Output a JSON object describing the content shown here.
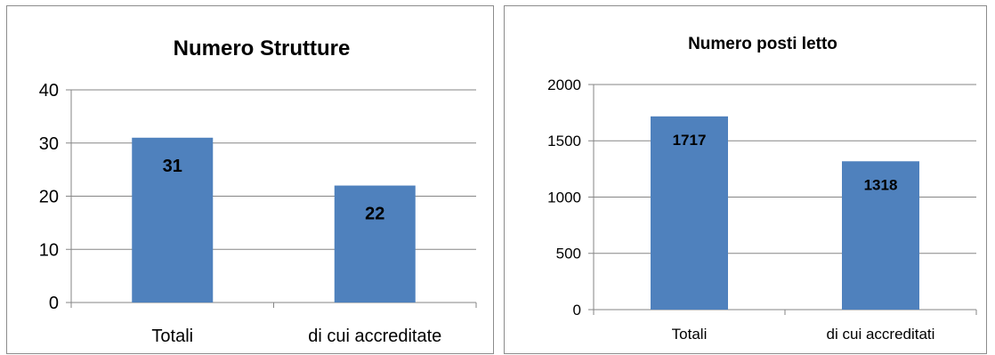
{
  "chart_data": [
    {
      "type": "bar",
      "title": "Numero Strutture",
      "categories": [
        "Totali",
        "di cui accreditate"
      ],
      "values": [
        31,
        22
      ],
      "data_labels": [
        "31",
        "22"
      ],
      "ylim": [
        0,
        40
      ],
      "yticks": [
        0,
        10,
        20,
        30,
        40
      ],
      "ytick_labels": [
        "0",
        "10",
        "20",
        "30",
        "40"
      ],
      "grid": true,
      "legend": "none",
      "bar_color": "#4f81bd"
    },
    {
      "type": "bar",
      "title": "Numero posti letto",
      "categories": [
        "Totali",
        "di cui accreditati"
      ],
      "values": [
        1717,
        1318
      ],
      "data_labels": [
        "1717",
        "1318"
      ],
      "ylim": [
        0,
        2000
      ],
      "yticks": [
        0,
        500,
        1000,
        1500,
        2000
      ],
      "ytick_labels": [
        "0",
        "500",
        "1000",
        "1500",
        "2000"
      ],
      "grid": true,
      "legend": "none",
      "bar_color": "#4f81bd"
    }
  ]
}
